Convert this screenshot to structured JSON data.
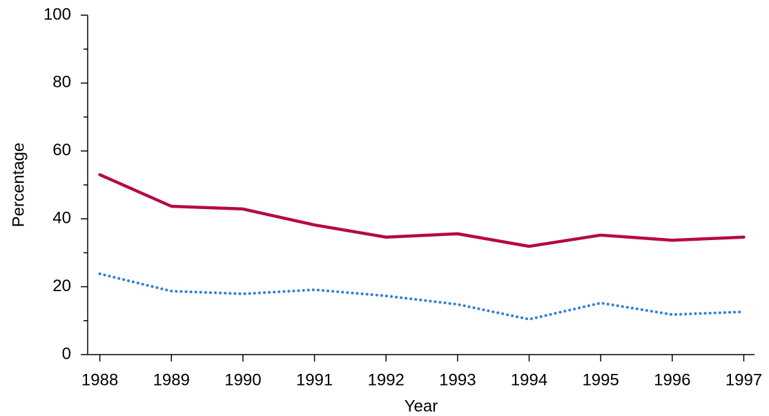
{
  "chart_data": {
    "type": "line",
    "x": [
      1988,
      1989,
      1990,
      1991,
      1992,
      1993,
      1994,
      1995,
      1996,
      1997
    ],
    "series": [
      {
        "color": "#b5084a",
        "linestyle": "solid",
        "values": [
          53.0,
          43.7,
          42.9,
          38.2,
          34.6,
          35.6,
          31.9,
          35.2,
          33.7,
          34.6
        ]
      },
      {
        "color": "#2f7fe0",
        "linestyle": "dotted",
        "values": [
          23.8,
          18.7,
          17.9,
          19.1,
          17.3,
          14.8,
          10.4,
          15.2,
          11.8,
          12.6
        ]
      }
    ],
    "xlabel": "Year",
    "ylabel": "Percentage",
    "xlim": [
      1987.83,
      1997.15
    ],
    "xticks": [
      1988,
      1989,
      1990,
      1991,
      1992,
      1993,
      1994,
      1995,
      1996,
      1997
    ],
    "ylim": [
      0,
      100
    ],
    "yticks": [
      0,
      20,
      40,
      60,
      80,
      100
    ],
    "yminorticks": [
      10,
      30,
      50,
      70,
      90
    ],
    "grid": false
  }
}
